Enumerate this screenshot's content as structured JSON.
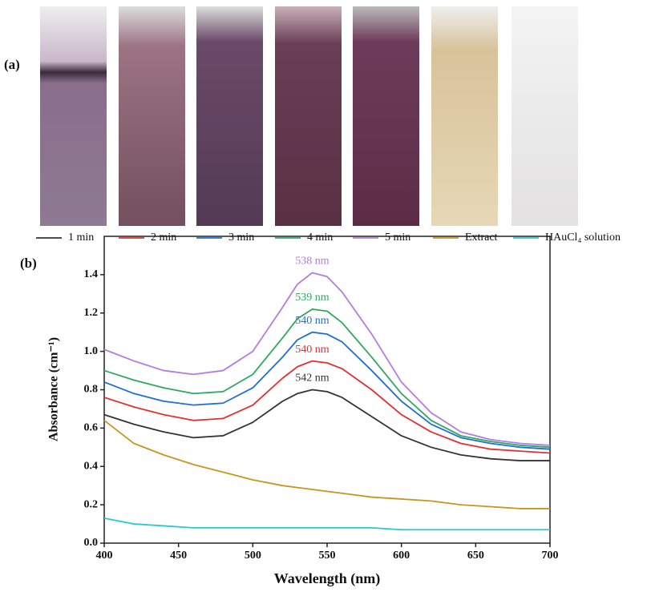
{
  "panel_a_label": "(a)",
  "panel_b_label": "(b)",
  "chart_data": {
    "type": "line",
    "x_label": "Wavelength (nm)",
    "y_label": "Absorbance (cm⁻¹)",
    "x": [
      400,
      420,
      440,
      460,
      480,
      500,
      520,
      530,
      540,
      550,
      560,
      580,
      600,
      620,
      640,
      660,
      680,
      700
    ],
    "series": [
      {
        "name": "1 min",
        "color": "#333333",
        "values": [
          0.67,
          0.62,
          0.58,
          0.55,
          0.56,
          0.63,
          0.74,
          0.78,
          0.8,
          0.79,
          0.76,
          0.66,
          0.56,
          0.5,
          0.46,
          0.44,
          0.43,
          0.43
        ]
      },
      {
        "name": "2 min",
        "color": "#e03030",
        "values": [
          0.76,
          0.71,
          0.67,
          0.64,
          0.65,
          0.72,
          0.86,
          0.92,
          0.95,
          0.94,
          0.91,
          0.8,
          0.67,
          0.58,
          0.52,
          0.49,
          0.48,
          0.47
        ]
      },
      {
        "name": "3 min",
        "color": "#1f6fd0",
        "values": [
          0.84,
          0.78,
          0.74,
          0.72,
          0.73,
          0.81,
          0.97,
          1.06,
          1.1,
          1.09,
          1.05,
          0.9,
          0.74,
          0.62,
          0.55,
          0.52,
          0.5,
          0.49
        ]
      },
      {
        "name": "4 min",
        "color": "#2ea860",
        "values": [
          0.9,
          0.85,
          0.81,
          0.78,
          0.79,
          0.88,
          1.07,
          1.17,
          1.22,
          1.21,
          1.15,
          0.97,
          0.78,
          0.64,
          0.56,
          0.53,
          0.51,
          0.5
        ]
      },
      {
        "name": "5 min",
        "color": "#b57be0",
        "values": [
          1.01,
          0.95,
          0.9,
          0.88,
          0.9,
          1.0,
          1.23,
          1.35,
          1.41,
          1.39,
          1.31,
          1.09,
          0.84,
          0.68,
          0.58,
          0.54,
          0.52,
          0.51
        ]
      },
      {
        "name": "Extract",
        "color": "#c8961e",
        "values": [
          0.64,
          0.52,
          0.46,
          0.41,
          0.37,
          0.33,
          0.3,
          0.29,
          0.28,
          0.27,
          0.26,
          0.24,
          0.23,
          0.22,
          0.2,
          0.19,
          0.18,
          0.18
        ]
      },
      {
        "name": "HAuCl₄ solution",
        "color": "#2cc8d0",
        "values": [
          0.13,
          0.1,
          0.09,
          0.08,
          0.08,
          0.08,
          0.08,
          0.08,
          0.08,
          0.08,
          0.08,
          0.08,
          0.07,
          0.07,
          0.07,
          0.07,
          0.07,
          0.07
        ]
      }
    ],
    "annotations": [
      {
        "text": "538 nm",
        "color": "#b57be0"
      },
      {
        "text": "539 nm",
        "color": "#2ea860"
      },
      {
        "text": "540 nm",
        "color": "#1f6fd0"
      },
      {
        "text": "540 nm",
        "color": "#e03030"
      },
      {
        "text": "542 nm",
        "color": "#333333"
      }
    ],
    "xlim": [
      400,
      700
    ],
    "xticks": [
      400,
      450,
      500,
      550,
      600,
      650,
      700
    ],
    "ylim": [
      0,
      1.6
    ],
    "yticks": [
      {
        "value": 0,
        "label": "0.0"
      },
      0.2,
      0.4,
      0.6,
      0.8,
      {
        "value": 1,
        "label": "1.0"
      },
      1.2,
      1.4
    ]
  }
}
